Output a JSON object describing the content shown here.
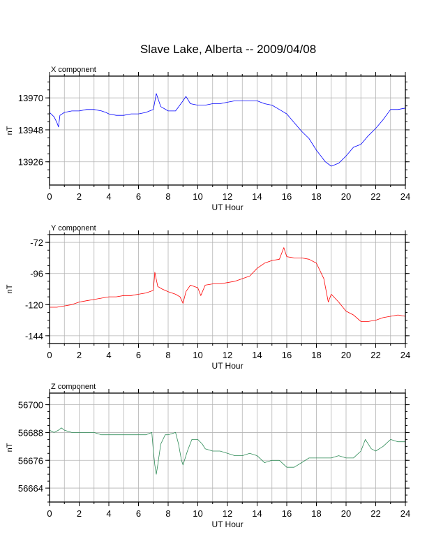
{
  "title": "Slave Lake, Alberta -- 2009/04/08",
  "chart_data": [
    {
      "type": "line",
      "panel_label": "X component",
      "ylabel": "nT",
      "xlabel": "UT Hour",
      "xlim": [
        0,
        24
      ],
      "ylim": [
        13910,
        13985
      ],
      "xticks": [
        0,
        2,
        4,
        6,
        8,
        10,
        12,
        14,
        16,
        18,
        20,
        22,
        24
      ],
      "yticks": [
        13926,
        13948,
        13970
      ],
      "grid": true,
      "color": "#0000ff",
      "series": [
        {
          "x": [
            0,
            0.3,
            0.5,
            0.6,
            0.7,
            1,
            1.5,
            2,
            2.5,
            3,
            3.5,
            3.8,
            4,
            4.5,
            5,
            5.5,
            6,
            6.5,
            7,
            7.2,
            7.5,
            8,
            8.5,
            9,
            9.2,
            9.5,
            10,
            10.5,
            11,
            11.5,
            12,
            12.5,
            13,
            13.5,
            14,
            14.5,
            15,
            15.5,
            16,
            16.5,
            17,
            17.5,
            18,
            18.3,
            18.6,
            19,
            19.5,
            20,
            20.5,
            21,
            21.5,
            22,
            22.5,
            23,
            23.5,
            24
          ],
          "y": [
            13960,
            13957,
            13953,
            13950,
            13958,
            13960,
            13961,
            13961,
            13962,
            13962,
            13961,
            13960,
            13959,
            13958,
            13958,
            13959,
            13959,
            13960,
            13962,
            13973,
            13964,
            13961,
            13961,
            13968,
            13971,
            13966,
            13965,
            13965,
            13966,
            13966,
            13967,
            13968,
            13968,
            13968,
            13968,
            13966,
            13965,
            13962,
            13959,
            13953,
            13947,
            13942,
            13934,
            13930,
            13926,
            13923,
            13925,
            13930,
            13936,
            13938,
            13944,
            13949,
            13955,
            13962,
            13962,
            13963
          ]
        }
      ]
    },
    {
      "type": "line",
      "panel_label": "Y component",
      "ylabel": "nT",
      "xlabel": "UT Hour",
      "xlim": [
        0,
        24
      ],
      "ylim": [
        -150,
        -66
      ],
      "xticks": [
        0,
        2,
        4,
        6,
        8,
        10,
        12,
        14,
        16,
        18,
        20,
        22,
        24
      ],
      "yticks": [
        -144,
        -120,
        -96,
        -72
      ],
      "grid": true,
      "color": "#ff0000",
      "series": [
        {
          "x": [
            0,
            0.5,
            1,
            1.5,
            2,
            2.5,
            3,
            3.5,
            4,
            4.5,
            5,
            5.5,
            6,
            6.5,
            7,
            7.1,
            7.3,
            7.6,
            8,
            8.5,
            8.8,
            9,
            9.2,
            9.5,
            10,
            10.2,
            10.5,
            11,
            11.5,
            12,
            12.5,
            13,
            13.5,
            14,
            14.5,
            15,
            15.5,
            15.8,
            16,
            16.5,
            17,
            17.5,
            18,
            18.5,
            18.8,
            19,
            19.5,
            20,
            20.5,
            21,
            21.5,
            22,
            22.5,
            23,
            23.5,
            24
          ],
          "y": [
            -122,
            -122,
            -121,
            -120,
            -118,
            -117,
            -116,
            -115,
            -114,
            -114,
            -113,
            -113,
            -112,
            -111,
            -109,
            -95,
            -106,
            -108,
            -110,
            -112,
            -114,
            -119,
            -110,
            -105,
            -107,
            -113,
            -105,
            -104,
            -104,
            -103,
            -102,
            -100,
            -98,
            -92,
            -88,
            -86,
            -85,
            -76,
            -83,
            -84,
            -84,
            -85,
            -88,
            -100,
            -118,
            -112,
            -118,
            -125,
            -128,
            -133,
            -133,
            -132,
            -130,
            -129,
            -128,
            -129
          ]
        }
      ]
    },
    {
      "type": "line",
      "panel_label": "Z component",
      "ylabel": "nT",
      "xlabel": "UT Hour",
      "xlim": [
        0,
        24
      ],
      "ylim": [
        56658,
        56705
      ],
      "xticks": [
        0,
        2,
        4,
        6,
        8,
        10,
        12,
        14,
        16,
        18,
        20,
        22,
        24
      ],
      "yticks": [
        56664,
        56676,
        56688,
        56700
      ],
      "grid": true,
      "color": "#2e8b57",
      "series": [
        {
          "x": [
            0,
            0.3,
            0.6,
            0.8,
            1,
            1.5,
            2,
            2.5,
            3,
            3.5,
            4,
            4.5,
            5,
            5.5,
            6,
            6.5,
            6.9,
            7,
            7.1,
            7.2,
            7.3,
            7.5,
            7.8,
            8,
            8.5,
            8.7,
            8.9,
            9,
            9.1,
            9.3,
            9.6,
            10,
            10.3,
            10.5,
            11,
            11.5,
            12,
            12.5,
            13,
            13.5,
            14,
            14.5,
            15,
            15.5,
            16,
            16.5,
            17,
            17.5,
            18,
            18.5,
            19,
            19.5,
            20,
            20.5,
            21,
            21.3,
            21.7,
            22,
            22.5,
            23,
            23.5,
            24
          ],
          "y": [
            56689,
            56688,
            56689,
            56690,
            56689,
            56688,
            56688,
            56688,
            56688,
            56687,
            56687,
            56687,
            56687,
            56687,
            56687,
            56687,
            56688,
            56680,
            56674,
            56670,
            56674,
            56683,
            56687,
            56687,
            56688,
            56683,
            56676,
            56674,
            56676,
            56680,
            56685,
            56685,
            56683,
            56681,
            56680,
            56680,
            56679,
            56678,
            56678,
            56679,
            56678,
            56675,
            56676,
            56676,
            56673,
            56673,
            56675,
            56677,
            56677,
            56677,
            56677,
            56678,
            56677,
            56677,
            56680,
            56685,
            56681,
            56680,
            56682,
            56685,
            56684,
            56684
          ]
        }
      ]
    }
  ]
}
